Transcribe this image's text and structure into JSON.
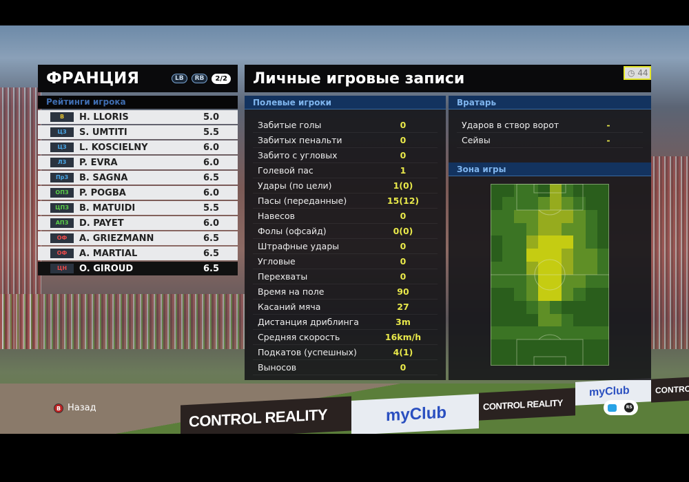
{
  "team": {
    "name": "ФРАНЦИЯ",
    "lb": "LB",
    "rb": "RB",
    "page": "2/2",
    "ratings_title": "Рейтинги игрока"
  },
  "players": [
    {
      "pos": "В",
      "pos_color": "#e3c230",
      "name": "H. LLORIS",
      "rating": "5.0"
    },
    {
      "pos": "ЦЗ",
      "pos_color": "#4aa8e8",
      "name": "S. UMTITI",
      "rating": "5.5"
    },
    {
      "pos": "ЦЗ",
      "pos_color": "#4aa8e8",
      "name": "L. KOSCIELNY",
      "rating": "6.0"
    },
    {
      "pos": "ЛЗ",
      "pos_color": "#4aa8e8",
      "name": "P. EVRA",
      "rating": "6.0"
    },
    {
      "pos": "ПрЗ",
      "pos_color": "#4aa8e8",
      "name": "B. SAGNA",
      "rating": "6.5"
    },
    {
      "pos": "ОПЗ",
      "pos_color": "#5cd04a",
      "name": "P. POGBA",
      "rating": "6.0"
    },
    {
      "pos": "ЦПЗ",
      "pos_color": "#5cd04a",
      "name": "B. MATUIDI",
      "rating": "5.5"
    },
    {
      "pos": "АПЗ",
      "pos_color": "#5cd04a",
      "name": "D. PAYET",
      "rating": "6.0"
    },
    {
      "pos": "ОФ",
      "pos_color": "#e84a4a",
      "name": "A. GRIEZMANN",
      "rating": "6.5"
    },
    {
      "pos": "ОФ",
      "pos_color": "#e84a4a",
      "name": "A. MARTIAL",
      "rating": "6.5"
    },
    {
      "pos": "ЦН",
      "pos_color": "#e84a4a",
      "name": "O. GIROUD",
      "rating": "6.5",
      "selected": true
    }
  ],
  "main": {
    "title": "Личные игровые записи",
    "timer": "44"
  },
  "field_players": {
    "title": "Полевые игроки",
    "stats": [
      {
        "label": "Забитые голы",
        "value": "0"
      },
      {
        "label": "Забитых пенальти",
        "value": "0"
      },
      {
        "label": "Забито с угловых",
        "value": "0"
      },
      {
        "label": "Голевой пас",
        "value": "1"
      },
      {
        "label": "Удары (по цели)",
        "value": "1(0)"
      },
      {
        "label": "Пасы (переданные)",
        "value": "15(12)"
      },
      {
        "label": "Навесов",
        "value": "0"
      },
      {
        "label": "Фолы (офсайд)",
        "value": "0(0)"
      },
      {
        "label": "Штрафные удары",
        "value": "0"
      },
      {
        "label": "Угловые",
        "value": "0"
      },
      {
        "label": "Перехваты",
        "value": "0"
      },
      {
        "label": "Время на поле",
        "value": "90"
      },
      {
        "label": "Касаний мяча",
        "value": "27"
      },
      {
        "label": "Дистанция дриблинга",
        "value": "3m"
      },
      {
        "label": "Средняя скорость",
        "value": "16km/h"
      },
      {
        "label": "Подкатов (успешных)",
        "value": "4(1)"
      },
      {
        "label": "Выносов",
        "value": "0"
      }
    ]
  },
  "goalkeeper": {
    "title": "Вратарь",
    "stats": [
      {
        "label": "Ударов в створ ворот",
        "value": "-"
      },
      {
        "label": "Сейвы",
        "value": "-"
      }
    ]
  },
  "zone": {
    "title": "Зона игры",
    "heat_colors": [
      "#2a5e1c",
      "#3b7424",
      "#5f8f26",
      "#96ab1e",
      "#c5cc12"
    ],
    "heatmap": [
      [
        0,
        0,
        1,
        1,
        0,
        3,
        1,
        0,
        0,
        0
      ],
      [
        0,
        1,
        1,
        1,
        2,
        3,
        2,
        1,
        0,
        0
      ],
      [
        1,
        1,
        2,
        2,
        3,
        3,
        3,
        2,
        1,
        0
      ],
      [
        1,
        1,
        1,
        2,
        3,
        3,
        2,
        2,
        1,
        0
      ],
      [
        0,
        1,
        1,
        3,
        4,
        4,
        4,
        2,
        1,
        0
      ],
      [
        0,
        1,
        1,
        4,
        4,
        4,
        3,
        2,
        2,
        1
      ],
      [
        1,
        1,
        1,
        3,
        4,
        4,
        3,
        2,
        2,
        1
      ],
      [
        1,
        1,
        1,
        2,
        4,
        4,
        2,
        2,
        1,
        1
      ],
      [
        0,
        0,
        1,
        2,
        4,
        4,
        2,
        1,
        0,
        0
      ],
      [
        0,
        0,
        0,
        1,
        2,
        1,
        0,
        0,
        0,
        0
      ],
      [
        0,
        0,
        0,
        0,
        2,
        2,
        1,
        0,
        0,
        0
      ],
      [
        1,
        1,
        1,
        1,
        1,
        1,
        1,
        1,
        1,
        1
      ],
      [
        0,
        0,
        0,
        0,
        0,
        0,
        0,
        0,
        0,
        0
      ],
      [
        0,
        0,
        0,
        0,
        0,
        0,
        0,
        0,
        0,
        0
      ]
    ]
  },
  "footer": {
    "back_button": "B",
    "back_label": "Назад",
    "rs": "RS"
  },
  "ads": {
    "control": "CONTROL REALITY",
    "myclub": "myClub"
  }
}
